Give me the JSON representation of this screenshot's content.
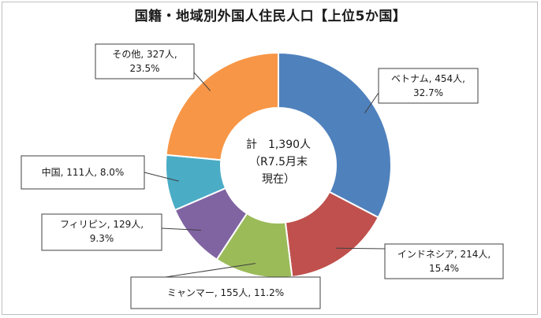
{
  "chart_data": {
    "type": "pie",
    "variant": "donut",
    "title": "国籍・地域別外国人住民人口【上位5か国】",
    "center": {
      "line1_prefix": "計",
      "line1_value": "1,390人",
      "line2": "（R7.5月末",
      "line3": "現在）"
    },
    "slices": [
      {
        "name": "ベトナム",
        "value": 454,
        "percent": 32.7,
        "color": "#4f81bd",
        "label_line1": "ベトナム, 454人,",
        "label_line2": "32.7%"
      },
      {
        "name": "インドネシア",
        "value": 214,
        "percent": 15.4,
        "color": "#c0504d",
        "label_line1": "インドネシア, 214人,",
        "label_line2": "15.4%"
      },
      {
        "name": "ミャンマー",
        "value": 155,
        "percent": 11.2,
        "color": "#9bbb59",
        "label_line1": "ミャンマー, 155人, 11.2%",
        "label_line2": ""
      },
      {
        "name": "フィリピン",
        "value": 129,
        "percent": 9.3,
        "color": "#8064a2",
        "label_line1": "フィリピン, 129人,",
        "label_line2": "9.3%"
      },
      {
        "name": "中国",
        "value": 111,
        "percent": 8.0,
        "color": "#4bacc6",
        "label_line1": "中国, 111人, 8.0%",
        "label_line2": ""
      },
      {
        "name": "その他",
        "value": 327,
        "percent": 23.5,
        "color": "#f79646",
        "label_line1": "その他, 327人,",
        "label_line2": "23.5%"
      }
    ]
  }
}
